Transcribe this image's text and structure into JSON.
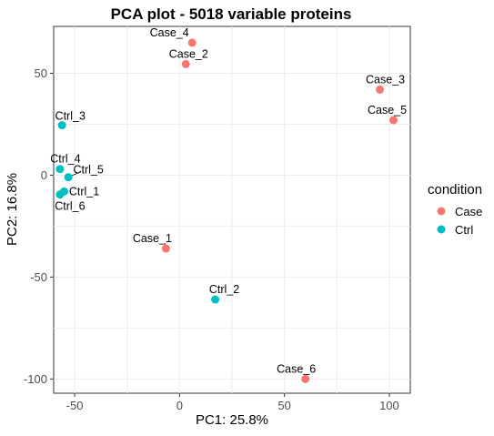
{
  "chart_data": {
    "type": "scatter",
    "title": "PCA plot - 5018 variable proteins",
    "xlabel": "PC1: 25.8%",
    "ylabel": "PC2: 16.8%",
    "xlim": [
      -60,
      110
    ],
    "ylim": [
      -107,
      73
    ],
    "xticks": [
      -50,
      0,
      50,
      100
    ],
    "yticks": [
      50,
      0,
      -50,
      -100
    ],
    "xtick_labels": [
      "-50",
      "0",
      "50",
      "100"
    ],
    "ytick_labels": [
      "50",
      "0",
      "-50",
      "-100"
    ],
    "grid": true,
    "legend": {
      "title": "condition",
      "position": "right",
      "entries": [
        {
          "name": "Case",
          "color": "#F8766D"
        },
        {
          "name": "Ctrl",
          "color": "#00BFC4"
        }
      ]
    },
    "series": [
      {
        "name": "Case",
        "color": "#F8766D",
        "points": [
          {
            "label": "Case_4",
            "x": 6,
            "y": 65
          },
          {
            "label": "Case_2",
            "x": 3,
            "y": 54.5
          },
          {
            "label": "Case_3",
            "x": 95.5,
            "y": 42
          },
          {
            "label": "Case_5",
            "x": 102,
            "y": 27
          },
          {
            "label": "Case_1",
            "x": -6.5,
            "y": -36
          },
          {
            "label": "Case_6",
            "x": 60,
            "y": -100
          }
        ]
      },
      {
        "name": "Ctrl",
        "color": "#00BFC4",
        "points": [
          {
            "label": "Ctrl_3",
            "x": -56,
            "y": 24.5
          },
          {
            "label": "Ctrl_4",
            "x": -57,
            "y": 3
          },
          {
            "label": "Ctrl_5",
            "x": -53,
            "y": -1
          },
          {
            "label": "Ctrl_1",
            "x": -55,
            "y": -8
          },
          {
            "label": "Ctrl_6",
            "x": -57,
            "y": -9.5
          },
          {
            "label": "Ctrl_2",
            "x": 17,
            "y": -61
          }
        ]
      }
    ]
  }
}
